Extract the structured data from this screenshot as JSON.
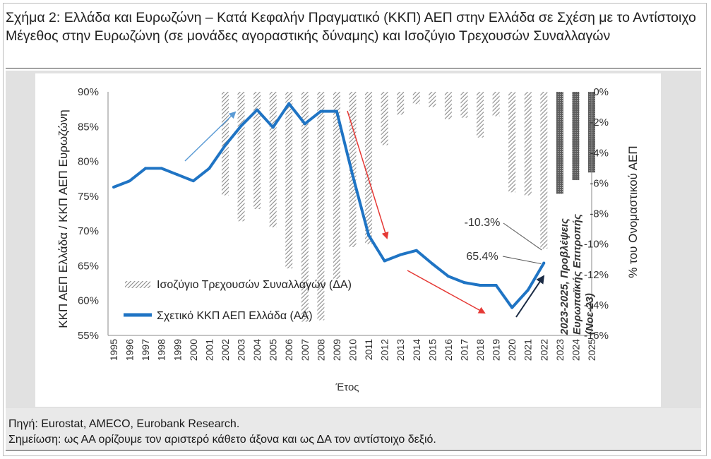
{
  "title": "Σχήμα 2: Ελλάδα και Ευρωζώνη – Κατά Κεφαλήν Πραγματικό (ΚΚΠ) ΑΕΠ στην Ελλάδα σε Σχέση με το Αντίστοιχο Μέγεθος στην Ευρωζώνη (σε μονάδες αγοραστικής δύναμης) και Ισοζύγιο Τρεχουσών Συναλλαγών",
  "source": "Πηγή: Eurostat, AMECO, Eurobank Research.",
  "note": "Σημείωση: ως ΑΑ ορίζουμε τον αριστερό κάθετο άξονα και ως ΔΑ τον αντίστοιχο δεξιό.",
  "colors": {
    "line": "#1f74c4",
    "bars": "#909090",
    "forecast_bars": "#707070",
    "red_arrow": "#e53935",
    "light_blue_arrow": "#5b9bd5",
    "navy_arrow": "#1b2b45"
  },
  "chart_data": {
    "type": "bar+line",
    "xlabel": "Έτος",
    "ylabel_left": "ΚΚΠ ΑΕΠ Ελλάδα / ΚΚΠ ΑΕΠ Ευρωζώνη",
    "ylabel_right": "% του Ονομαστικού ΑΕΠ",
    "ylim_left": [
      0.55,
      0.9
    ],
    "ylim_right": [
      -16,
      0
    ],
    "left_ticks": [
      "55%",
      "60%",
      "65%",
      "70%",
      "75%",
      "80%",
      "85%",
      "90%"
    ],
    "right_ticks": [
      "0%",
      "-2%",
      "-4%",
      "-6%",
      "-8%",
      "-10%",
      "-12%",
      "-14%",
      "-16%"
    ],
    "categories": [
      "1995",
      "1996",
      "1997",
      "1998",
      "1999",
      "2000",
      "2001",
      "2002",
      "2003",
      "2004",
      "2005",
      "2006",
      "2007",
      "2008",
      "2009",
      "2010",
      "2011",
      "2012",
      "2013",
      "2014",
      "2015",
      "2016",
      "2017",
      "2018",
      "2019",
      "2020",
      "2021",
      "2022",
      "2023",
      "2024",
      "2025"
    ],
    "series": [
      {
        "name": "Ισοζύγιο Τρεχουσών Συναλλαγών (ΔΑ)",
        "type": "bar",
        "axis": "right",
        "values": [
          null,
          null,
          null,
          null,
          null,
          null,
          null,
          -6.8,
          -8.5,
          -7.7,
          -8.9,
          -11.6,
          -15.1,
          -15.0,
          -12.3,
          -10.2,
          -10.0,
          -3.5,
          -1.5,
          -0.8,
          -1.0,
          -1.8,
          -1.7,
          -3.0,
          -1.6,
          -6.6,
          -6.8,
          -10.3,
          -6.7,
          -5.8,
          -5.3
        ]
      },
      {
        "name": "Σχετικό ΚΚΠ ΑΕΠ Ελλάδα (ΑΑ)",
        "type": "line",
        "axis": "left",
        "values": [
          0.763,
          0.772,
          0.79,
          0.79,
          0.781,
          0.772,
          0.79,
          0.823,
          0.851,
          0.874,
          0.849,
          0.883,
          0.854,
          0.872,
          0.872,
          0.78,
          0.694,
          0.657,
          0.666,
          0.672,
          0.653,
          0.635,
          0.626,
          0.622,
          0.622,
          0.59,
          0.615,
          0.654,
          null,
          null,
          null
        ]
      }
    ],
    "forecast_categories": [
      "2023",
      "2024",
      "2025"
    ],
    "annotations": {
      "bar_callout": "-10.3%",
      "line_callout": "65.4%",
      "forecast_label_line1": "2023-2025, Προβλέψεις",
      "forecast_label_line2": "Ευρωπαϊκής Επιτροπής",
      "forecast_label_line3": "(Νοε-23)"
    },
    "grid": false,
    "legend_position": "bottom-left inside plot"
  }
}
